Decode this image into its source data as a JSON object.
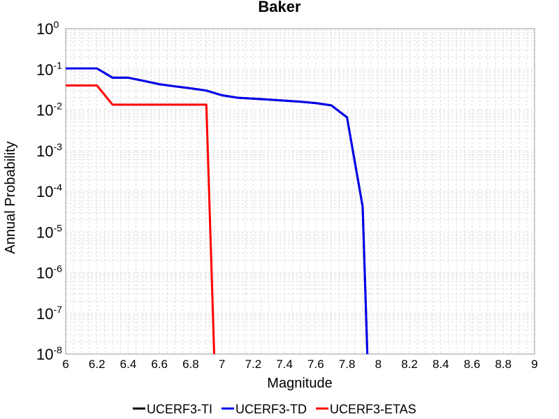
{
  "chart_data": {
    "type": "line",
    "title": "Baker",
    "xlabel": "Magnitude",
    "ylabel": "Annual Probability",
    "xlim": [
      6,
      9
    ],
    "ylim": [
      1e-08,
      1
    ],
    "yscale": "log",
    "grid": true,
    "legend_placement": "bottom",
    "x_ticks": [
      "6",
      "6.2",
      "6.4",
      "6.6",
      "6.8",
      "7",
      "7.2",
      "7.4",
      "7.6",
      "7.8",
      "8",
      "8.2",
      "8.4",
      "8.6",
      "8.8",
      "9"
    ],
    "y_ticks": [
      {
        "base": "10",
        "exp": "0"
      },
      {
        "base": "10",
        "exp": "-1"
      },
      {
        "base": "10",
        "exp": "-2"
      },
      {
        "base": "10",
        "exp": "-3"
      },
      {
        "base": "10",
        "exp": "-4"
      },
      {
        "base": "10",
        "exp": "-5"
      },
      {
        "base": "10",
        "exp": "-6"
      },
      {
        "base": "10",
        "exp": "-7"
      },
      {
        "base": "10",
        "exp": "-8"
      }
    ],
    "series": [
      {
        "name": "UCERF3-TI",
        "color": "#000000",
        "x": [
          6.0,
          6.2,
          6.3,
          6.4,
          6.5,
          6.6,
          6.7,
          6.8,
          6.9,
          7.0,
          7.1,
          7.2,
          7.3,
          7.4,
          7.5,
          7.6,
          7.7,
          7.8,
          7.9,
          7.93
        ],
        "y": [
          0.105,
          0.105,
          0.062,
          0.062,
          0.052,
          0.043,
          0.038,
          0.034,
          0.03,
          0.023,
          0.02,
          0.019,
          0.018,
          0.017,
          0.016,
          0.0148,
          0.013,
          0.0066,
          4.2e-05,
          1e-08
        ]
      },
      {
        "name": "UCERF3-TD",
        "color": "#0000ee",
        "x": [
          6.0,
          6.2,
          6.3,
          6.4,
          6.5,
          6.6,
          6.7,
          6.8,
          6.9,
          7.0,
          7.1,
          7.2,
          7.3,
          7.4,
          7.5,
          7.6,
          7.7,
          7.8,
          7.9,
          7.93
        ],
        "y": [
          0.105,
          0.105,
          0.062,
          0.062,
          0.052,
          0.043,
          0.038,
          0.034,
          0.03,
          0.023,
          0.02,
          0.019,
          0.018,
          0.017,
          0.016,
          0.0148,
          0.013,
          0.0066,
          4.2e-05,
          1e-08
        ]
      },
      {
        "name": "UCERF3-ETAS",
        "color": "#ff0000",
        "x": [
          6.0,
          6.2,
          6.3,
          6.4,
          6.5,
          6.6,
          6.7,
          6.8,
          6.9,
          6.95
        ],
        "y": [
          0.04,
          0.04,
          0.0135,
          0.0135,
          0.0135,
          0.0135,
          0.0135,
          0.0135,
          0.0135,
          1e-08
        ]
      }
    ]
  }
}
